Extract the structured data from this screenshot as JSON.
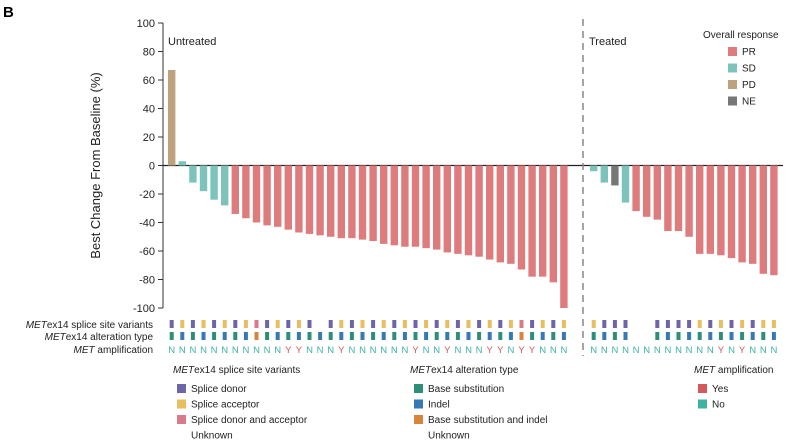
{
  "panel_letter": "B",
  "chart_data": {
    "type": "bar",
    "title": "",
    "xlabel": "",
    "ylabel": "Best Change From Baseline (%)",
    "ylim": [
      -100,
      100
    ],
    "yticks": [
      100,
      80,
      60,
      40,
      20,
      0,
      -20,
      -40,
      -60,
      -80,
      -100
    ],
    "groups": [
      {
        "name": "Untreated",
        "values": [
          67,
          3,
          -12,
          -18,
          -24,
          -28,
          -34,
          -37,
          -40,
          -42,
          -43,
          -45,
          -47,
          -48,
          -49,
          -50,
          -51,
          -51,
          -52,
          -53,
          -55,
          -56,
          -57,
          -57,
          -58,
          -59,
          -61,
          -62,
          -63,
          -64,
          -66,
          -68,
          -69,
          -73,
          -78,
          -78,
          -82,
          -100
        ],
        "response": [
          "PD",
          "SD",
          "SD",
          "SD",
          "SD",
          "SD",
          "PR",
          "PR",
          "PR",
          "PR",
          "PR",
          "PR",
          "PR",
          "PR",
          "PR",
          "PR",
          "PR",
          "PR",
          "PR",
          "PR",
          "PR",
          "PR",
          "PR",
          "PR",
          "PR",
          "PR",
          "PR",
          "PR",
          "PR",
          "PR",
          "PR",
          "PR",
          "PR",
          "PR",
          "PR",
          "PR",
          "PR",
          "PR"
        ],
        "splice": [
          "donor",
          "acceptor",
          "donor",
          "acceptor",
          "donor",
          "acceptor",
          "donor",
          "acceptor",
          "both",
          "donor",
          "acceptor",
          "donor",
          "acceptor",
          "donor",
          "unknown",
          "donor",
          "acceptor",
          "donor",
          "acceptor",
          "donor",
          "acceptor",
          "donor",
          "acceptor",
          "donor",
          "acceptor",
          "donor",
          "acceptor",
          "donor",
          "acceptor",
          "donor",
          "acceptor",
          "donor",
          "acceptor",
          "both",
          "donor",
          "acceptor",
          "donor",
          "acceptor"
        ],
        "alteration": [
          "base",
          "indel",
          "base",
          "indel",
          "base",
          "indel",
          "base",
          "indel",
          "both",
          "base",
          "indel",
          "base",
          "indel",
          "base",
          "indel",
          "base",
          "indel",
          "base",
          "indel",
          "base",
          "indel",
          "base",
          "indel",
          "base",
          "indel",
          "base",
          "indel",
          "base",
          "indel",
          "base",
          "indel",
          "base",
          "indel",
          "both",
          "base",
          "indel",
          "base",
          "indel"
        ],
        "amplification": [
          "N",
          "N",
          "N",
          "N",
          "N",
          "N",
          "N",
          "N",
          "N",
          "N",
          "N",
          "Y",
          "Y",
          "N",
          "N",
          "N",
          "Y",
          "N",
          "N",
          "N",
          "N",
          "N",
          "N",
          "Y",
          "N",
          "N",
          "Y",
          "N",
          "N",
          "N",
          "Y",
          "Y",
          "N",
          "Y",
          "Y",
          "N",
          "N",
          "N"
        ]
      },
      {
        "name": "Treated",
        "values": [
          -4,
          -12,
          -14,
          -26,
          -32,
          -36,
          -38,
          -46,
          -46,
          -50,
          -62,
          -62,
          -63,
          -65,
          -68,
          -69,
          -76,
          -77
        ],
        "response": [
          "SD",
          "SD",
          "NE",
          "SD",
          "PR",
          "PR",
          "PR",
          "PR",
          "PR",
          "PR",
          "PR",
          "PR",
          "PR",
          "PR",
          "PR",
          "PR",
          "PR",
          "PR"
        ],
        "splice": [
          "acceptor",
          "donor",
          "donor",
          "donor",
          "unknown",
          "unknown",
          "donor",
          "donor",
          "donor",
          "donor",
          "acceptor",
          "donor",
          "acceptor",
          "donor",
          "acceptor",
          "donor",
          "acceptor",
          "acceptor"
        ],
        "alteration": [
          "base",
          "indel",
          "base",
          "indel",
          "unknown",
          "unknown",
          "base",
          "indel",
          "base",
          "indel",
          "base",
          "indel",
          "base",
          "indel",
          "base",
          "indel",
          "base",
          "indel"
        ],
        "amplification": [
          "N",
          "N",
          "N",
          "N",
          "N",
          "N",
          "N",
          "N",
          "N",
          "N",
          "N",
          "N",
          "Y",
          "N",
          "Y",
          "N",
          "N",
          "N"
        ]
      }
    ],
    "response_legend": {
      "title": "Overall response",
      "placement": "top-right",
      "items": [
        {
          "key": "PR",
          "label": "PR",
          "color": "#dd7b7d"
        },
        {
          "key": "SD",
          "label": "SD",
          "color": "#7cc4bb"
        },
        {
          "key": "PD",
          "label": "PD",
          "color": "#bea27d"
        },
        {
          "key": "NE",
          "label": "NE",
          "color": "#777777"
        }
      ]
    }
  },
  "rows": {
    "splice_prefix": "MET",
    "splice_rest": "ex14 splice site variants",
    "alteration_prefix": "MET",
    "alteration_rest": "ex14 alteration type",
    "amp_prefix": "MET",
    "amp_rest": " amplification"
  },
  "legends": {
    "splice": {
      "title_prefix": "MET",
      "title_rest": "ex14 splice site variants",
      "items": [
        {
          "key": "donor",
          "label": "Splice donor",
          "color": "#6e64a8"
        },
        {
          "key": "acceptor",
          "label": "Splice acceptor",
          "color": "#e9be5e"
        },
        {
          "key": "both",
          "label": "Splice donor and acceptor",
          "color": "#d97a8a"
        },
        {
          "key": "unknown",
          "label": "Unknown",
          "color": "none"
        }
      ]
    },
    "alteration": {
      "title_prefix": "MET",
      "title_rest": "ex14 alteration type",
      "items": [
        {
          "key": "base",
          "label": "Base substitution",
          "color": "#2e8f78"
        },
        {
          "key": "indel",
          "label": "Indel",
          "color": "#3679b6"
        },
        {
          "key": "both",
          "label": "Base substitution and indel",
          "color": "#d9843b"
        },
        {
          "key": "unknown",
          "label": "Unknown",
          "color": "none"
        }
      ]
    },
    "amplification": {
      "title_prefix": "MET",
      "title_rest": " amplification",
      "items": [
        {
          "key": "Y",
          "label": "Yes",
          "color": "#d2585a"
        },
        {
          "key": "N",
          "label": "No",
          "color": "#3fb3a2"
        }
      ]
    }
  }
}
